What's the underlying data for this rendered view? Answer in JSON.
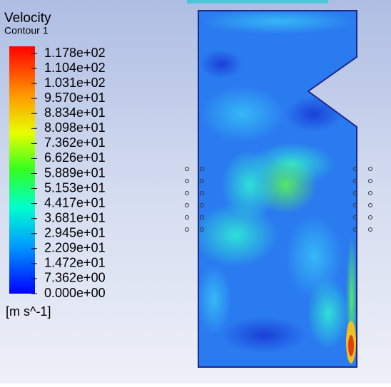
{
  "legend": {
    "title": "Velocity",
    "subtitle": "Contour 1",
    "labels": [
      "1.178e+02",
      "1.104e+02",
      "1.031e+02",
      "9.570e+01",
      "8.834e+01",
      "8.098e+01",
      "7.362e+01",
      "6.626e+01",
      "5.889e+01",
      "5.153e+01",
      "4.417e+01",
      "3.681e+01",
      "2.945e+01",
      "2.209e+01",
      "1.472e+01",
      "7.362e+00",
      "0.000e+00"
    ],
    "unit": "[m s^-1]"
  }
}
